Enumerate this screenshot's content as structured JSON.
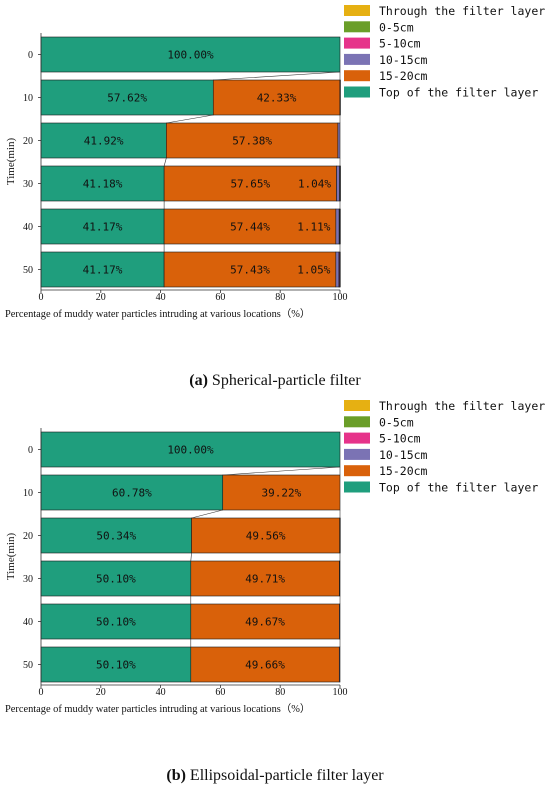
{
  "colors": {
    "through": "#e6b012",
    "d0_5": "#6a9e28",
    "d5_10": "#e6338a",
    "d10_15": "#7b73b4",
    "d15_20": "#d9610a",
    "top": "#1f9e7d",
    "border": "#1a1a1a"
  },
  "chart_data": [
    {
      "type": "bar",
      "orientation": "horizontal",
      "stacked": true,
      "caption_bold": "(a)",
      "caption_rest": " Spherical-particle filter",
      "xlabel": "Percentage of muddy water particles intruding at various locations（%）",
      "ylabel": "Time(min)",
      "xlim": [
        0,
        100
      ],
      "xticks": [
        "0",
        "20",
        "40",
        "60",
        "80",
        "100"
      ],
      "categories": [
        "0",
        "10",
        "20",
        "30",
        "40",
        "50"
      ],
      "legend_position": "top-right",
      "series": [
        {
          "name": "Top of the filter layer",
          "color_key": "top",
          "values": [
            100.0,
            57.62,
            41.92,
            41.18,
            41.17,
            41.17
          ],
          "labels": [
            "100.00%",
            "57.62%",
            "41.92%",
            "41.18%",
            "41.17%",
            "41.17%"
          ]
        },
        {
          "name": "15-20cm",
          "color_key": "d15_20",
          "values": [
            0,
            42.33,
            57.38,
            57.65,
            57.44,
            57.43
          ],
          "labels": [
            "",
            "42.33%",
            "57.38%",
            "57.65%",
            "57.44%",
            "57.43%"
          ]
        },
        {
          "name": "10-15cm",
          "color_key": "d10_15",
          "values": [
            0,
            0.05,
            0.7,
            1.04,
            1.11,
            1.05
          ],
          "labels": [
            "",
            "",
            "",
            "1.04%",
            "1.11%",
            "1.05%"
          ]
        },
        {
          "name": "5-10cm",
          "color_key": "d5_10",
          "values": [
            0,
            0,
            0,
            0.1,
            0.2,
            0.25
          ],
          "labels": [
            "",
            "",
            "",
            "",
            "",
            ""
          ]
        },
        {
          "name": "0-5cm",
          "color_key": "d0_5",
          "values": [
            0,
            0,
            0,
            0.03,
            0.08,
            0.1
          ],
          "labels": [
            "",
            "",
            "",
            "",
            "",
            ""
          ]
        },
        {
          "name": "Through the filter layer",
          "color_key": "through",
          "values": [
            0,
            0,
            0,
            0,
            0,
            0
          ],
          "labels": [
            "",
            "",
            "",
            "",
            "",
            ""
          ]
        }
      ]
    },
    {
      "type": "bar",
      "orientation": "horizontal",
      "stacked": true,
      "caption_bold": "(b)",
      "caption_rest": " Ellipsoidal-particle filter layer",
      "xlabel": "Percentage of muddy water particles intruding at various locations（%）",
      "ylabel": "Time(min)",
      "xlim": [
        0,
        100
      ],
      "xticks": [
        "0",
        "20",
        "40",
        "60",
        "80",
        "100"
      ],
      "categories": [
        "0",
        "10",
        "20",
        "30",
        "40",
        "50"
      ],
      "legend_position": "top-right",
      "series": [
        {
          "name": "Top of the filter layer",
          "color_key": "top",
          "values": [
            100.0,
            60.78,
            50.34,
            50.1,
            50.1,
            50.1
          ],
          "labels": [
            "100.00%",
            "60.78%",
            "50.34%",
            "50.10%",
            "50.10%",
            "50.10%"
          ]
        },
        {
          "name": "15-20cm",
          "color_key": "d15_20",
          "values": [
            0,
            39.22,
            49.56,
            49.71,
            49.67,
            49.66
          ],
          "labels": [
            "",
            "39.22%",
            "49.56%",
            "49.71%",
            "49.67%",
            "49.66%"
          ]
        },
        {
          "name": "10-15cm",
          "color_key": "d10_15",
          "values": [
            0,
            0,
            0.1,
            0.19,
            0.23,
            0.24
          ],
          "labels": [
            "",
            "",
            "",
            "",
            "",
            ""
          ]
        },
        {
          "name": "5-10cm",
          "color_key": "d5_10",
          "values": [
            0,
            0,
            0,
            0,
            0,
            0
          ],
          "labels": [
            "",
            "",
            "",
            "",
            "",
            ""
          ]
        },
        {
          "name": "0-5cm",
          "color_key": "d0_5",
          "values": [
            0,
            0,
            0,
            0,
            0,
            0
          ],
          "labels": [
            "",
            "",
            "",
            "",
            "",
            ""
          ]
        },
        {
          "name": "Through the filter layer",
          "color_key": "through",
          "values": [
            0,
            0,
            0,
            0,
            0,
            0
          ],
          "labels": [
            "",
            "",
            "",
            "",
            "",
            ""
          ]
        }
      ]
    }
  ]
}
